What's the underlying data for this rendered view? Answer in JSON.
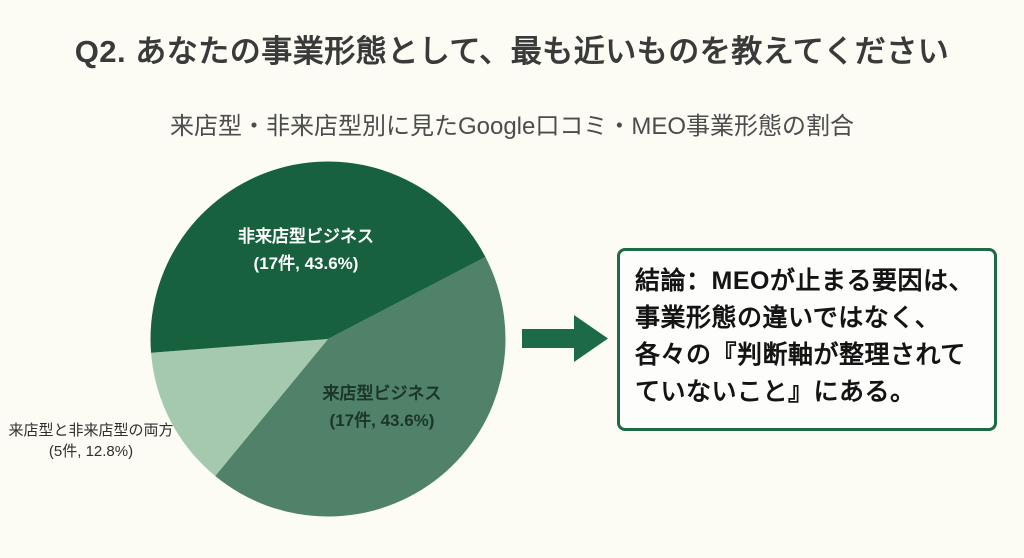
{
  "page": {
    "title": "Q2. あなたの事業形態として、最も近いものを教えてください",
    "subtitle": "来店型・非来店型別に見たGoogle口コミ・MEO事業形態の割合"
  },
  "chart_data": {
    "type": "pie",
    "title": "来店型・非来店型別に見たGoogle口コミ・MEO事業形態の割合",
    "legend_position": "none",
    "start_angle_deg": 62.5,
    "clockwise_draw_order": [
      1,
      2,
      0
    ],
    "slices": [
      {
        "label": "非来店型ビジネス",
        "count": 17,
        "percent": 43.6,
        "value_label": "(17件, 43.6%)",
        "color": "#17613f",
        "text_color": "#ffffff",
        "label_placement": "inside"
      },
      {
        "label": "来店型ビジネス",
        "count": 17,
        "percent": 43.6,
        "value_label": "(17件, 43.6%)",
        "color": "#4f8269",
        "text_color": "#1c3526",
        "label_placement": "inside"
      },
      {
        "label": "来店型と非来店型の両方",
        "count": 5,
        "percent": 12.8,
        "value_label": "(5件, 12.8%)",
        "color": "#a5c9ae",
        "text_color": "#2f2f2f",
        "label_placement": "outside-left"
      }
    ]
  },
  "arrow": {
    "direction": "right"
  },
  "conclusion": {
    "lines": [
      "結論：MEOが止まる要因は、",
      "事業形態の違いではなく、",
      "各々の『判断軸が整理されて",
      "ていないこと』にある。"
    ]
  },
  "colors": {
    "background": "#fcfcf5",
    "title_text": "#3a3a3a",
    "subtitle_text": "#4c4c4c",
    "arrow": "#1d6a46",
    "box_border": "#1d6a46",
    "box_background": "#fdfdfb",
    "box_text": "#141414"
  }
}
